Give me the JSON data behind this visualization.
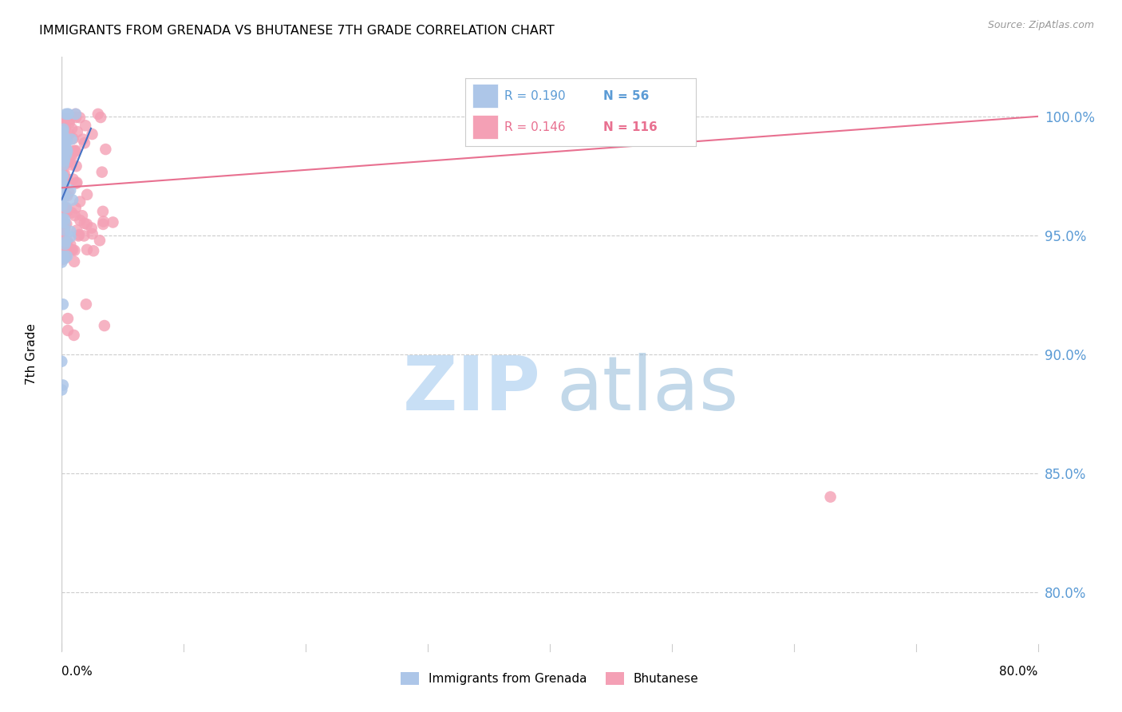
{
  "title": "IMMIGRANTS FROM GRENADA VS BHUTANESE 7TH GRADE CORRELATION CHART",
  "source": "Source: ZipAtlas.com",
  "ylabel": "7th Grade",
  "ytick_labels": [
    "100.0%",
    "95.0%",
    "90.0%",
    "85.0%",
    "80.0%"
  ],
  "ytick_values": [
    1.0,
    0.95,
    0.9,
    0.85,
    0.8
  ],
  "xmin": 0.0,
  "xmax": 0.8,
  "ymin": 0.775,
  "ymax": 1.025,
  "legend_r1": "R = 0.190",
  "legend_n1": "N = 56",
  "legend_r2": "R = 0.146",
  "legend_n2": "N = 116",
  "color_grenada": "#adc6e8",
  "color_bhutanese": "#f4a0b5",
  "color_line_grenada": "#4472c4",
  "color_line_bhutanese": "#e87090",
  "color_ticks": "#5b9bd5",
  "grid_color": "#cccccc",
  "watermark_zip_color": "#c8dff5",
  "watermark_atlas_color": "#90b8d8",
  "grenada_line_x0": 0.0,
  "grenada_line_x1": 0.024,
  "grenada_line_y0": 0.965,
  "grenada_line_y1": 0.995,
  "bhutanese_line_x0": 0.0,
  "bhutanese_line_x1": 0.8,
  "bhutanese_line_y0": 0.97,
  "bhutanese_line_y1": 1.0
}
